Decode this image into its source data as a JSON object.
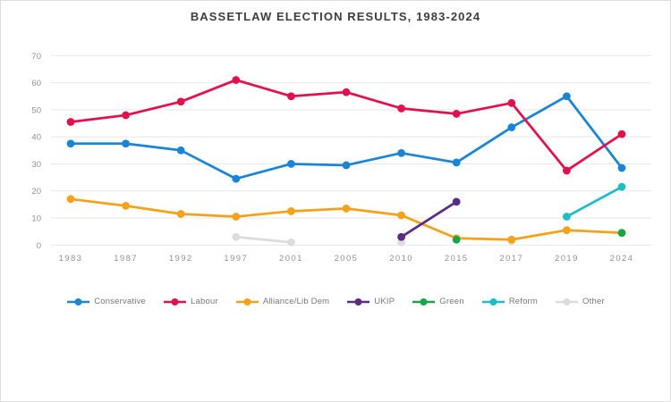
{
  "chart_data": {
    "type": "line",
    "title": "BASSETLAW ELECTION RESULTS, 1983-2024",
    "xlabel": "",
    "ylabel": "",
    "ylim": [
      0,
      70
    ],
    "yticks": [
      0,
      10,
      20,
      30,
      40,
      50,
      60,
      70
    ],
    "grid": "horizontal",
    "legend_position": "bottom",
    "categories": [
      "1983",
      "1987",
      "1992",
      "1997",
      "2001",
      "2005",
      "2010",
      "2015",
      "2017",
      "2019",
      "2024"
    ],
    "series": [
      {
        "name": "Conservative",
        "color": "#1a85d6",
        "values": [
          37.5,
          37.5,
          35,
          24.5,
          30,
          29.5,
          34,
          30.5,
          43.5,
          55,
          28.5
        ]
      },
      {
        "name": "Labour",
        "color": "#e4104e",
        "values": [
          45.5,
          48,
          53,
          61,
          55,
          56.5,
          50.5,
          48.5,
          52.5,
          27.5,
          41
        ]
      },
      {
        "name": "Alliance/Lib Dem",
        "color": "#f7a11a",
        "values": [
          17,
          14.5,
          11.5,
          10.5,
          12.5,
          13.5,
          11,
          2.5,
          2,
          5.5,
          4.5
        ]
      },
      {
        "name": "UKIP",
        "color": "#5b2c83",
        "values": [
          null,
          null,
          null,
          null,
          null,
          null,
          3,
          16,
          null,
          null,
          null
        ]
      },
      {
        "name": "Green",
        "color": "#17a64a",
        "values": [
          null,
          null,
          null,
          null,
          null,
          null,
          null,
          2,
          null,
          null,
          4.5
        ]
      },
      {
        "name": "Reform",
        "color": "#1cbcc8",
        "values": [
          null,
          null,
          null,
          null,
          null,
          null,
          null,
          null,
          null,
          10.5,
          21.5
        ]
      },
      {
        "name": "Other",
        "color": "#dcdcdc",
        "values": [
          null,
          null,
          null,
          3,
          1,
          null,
          1,
          null,
          1.5,
          null,
          null
        ]
      }
    ]
  }
}
